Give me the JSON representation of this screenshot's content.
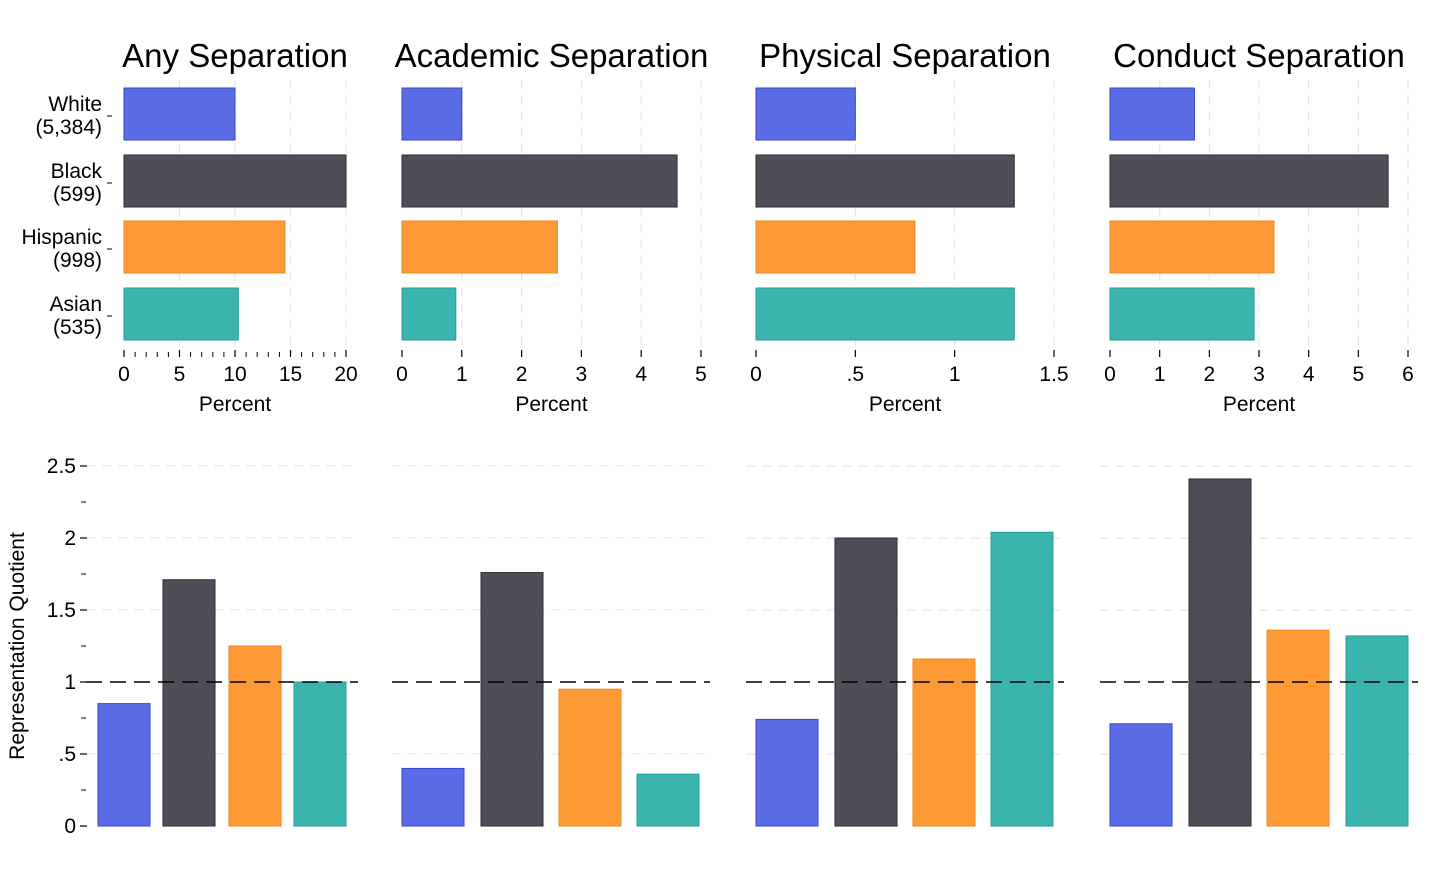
{
  "colors": {
    "White": "#5a6de6",
    "Black": "#4e4e58",
    "Hispanic": "#fd9a35",
    "Asian": "#3bb4ad",
    "White_stroke": "#3345c8",
    "Black_stroke": "#2a2a30",
    "Hispanic_stroke": "#f08a1e",
    "Asian_stroke": "#22a097"
  },
  "chart_data": [
    {
      "type": "bar",
      "orientation": "horizontal",
      "title": "Any Separation",
      "xlabel": "Percent",
      "categories": [
        "White",
        "Black",
        "Hispanic",
        "Asian"
      ],
      "category_counts": [
        "(5,384)",
        "(599)",
        "(998)",
        "(535)"
      ],
      "values": [
        10,
        20,
        14.5,
        10.3
      ],
      "xlim": [
        0,
        20
      ],
      "xticks": [
        0,
        5,
        10,
        15,
        20
      ],
      "xtick_labels": [
        "0",
        "5",
        "10",
        "15",
        "20"
      ],
      "minor_step": 1,
      "grid": true
    },
    {
      "type": "bar",
      "orientation": "horizontal",
      "title": "Academic Separation",
      "xlabel": "Percent",
      "categories": [
        "White",
        "Black",
        "Hispanic",
        "Asian"
      ],
      "values": [
        1.0,
        4.6,
        2.6,
        0.9
      ],
      "xlim": [
        0,
        5
      ],
      "xticks": [
        0,
        1,
        2,
        3,
        4,
        5
      ],
      "xtick_labels": [
        "0",
        "1",
        "2",
        "3",
        "4",
        "5"
      ],
      "grid": true
    },
    {
      "type": "bar",
      "orientation": "horizontal",
      "title": "Physical Separation",
      "xlabel": "Percent",
      "categories": [
        "White",
        "Black",
        "Hispanic",
        "Asian"
      ],
      "values": [
        0.5,
        1.3,
        0.8,
        1.3
      ],
      "xlim": [
        0,
        1.5
      ],
      "xticks": [
        0,
        0.5,
        1,
        1.5
      ],
      "xtick_labels": [
        "0",
        ".5",
        "1",
        "1.5"
      ],
      "grid": true
    },
    {
      "type": "bar",
      "orientation": "horizontal",
      "title": "Conduct Separation",
      "xlabel": "Percent",
      "categories": [
        "White",
        "Black",
        "Hispanic",
        "Asian"
      ],
      "values": [
        1.7,
        5.6,
        3.3,
        2.9
      ],
      "xlim": [
        0,
        6
      ],
      "xticks": [
        0,
        1,
        2,
        3,
        4,
        5,
        6
      ],
      "xtick_labels": [
        "0",
        "1",
        "2",
        "3",
        "4",
        "5",
        "6"
      ],
      "grid": true
    },
    {
      "type": "bar",
      "orientation": "vertical",
      "panel": "Any Separation",
      "ylabel": "Representation Quotient",
      "categories": [
        "White",
        "Black",
        "Hispanic",
        "Asian"
      ],
      "values": [
        0.85,
        1.71,
        1.25,
        1.0
      ],
      "ylim": [
        0,
        2.5
      ],
      "yticks": [
        0,
        0.5,
        1,
        1.5,
        2,
        2.5
      ],
      "ytick_labels": [
        "0",
        ".5",
        "1",
        "1.5",
        "2",
        "2.5"
      ],
      "reference_line": 1,
      "grid": true
    },
    {
      "type": "bar",
      "orientation": "vertical",
      "panel": "Academic Separation",
      "categories": [
        "White",
        "Black",
        "Hispanic",
        "Asian"
      ],
      "values": [
        0.4,
        1.76,
        0.95,
        0.36
      ],
      "ylim": [
        0,
        2.5
      ],
      "reference_line": 1,
      "grid": true
    },
    {
      "type": "bar",
      "orientation": "vertical",
      "panel": "Physical Separation",
      "categories": [
        "White",
        "Black",
        "Hispanic",
        "Asian"
      ],
      "values": [
        0.74,
        2.0,
        1.16,
        2.04
      ],
      "ylim": [
        0,
        2.5
      ],
      "reference_line": 1,
      "grid": true
    },
    {
      "type": "bar",
      "orientation": "vertical",
      "panel": "Conduct Separation",
      "categories": [
        "White",
        "Black",
        "Hispanic",
        "Asian"
      ],
      "values": [
        0.71,
        2.41,
        1.36,
        1.32
      ],
      "ylim": [
        0,
        2.5
      ],
      "reference_line": 1,
      "grid": true
    }
  ]
}
